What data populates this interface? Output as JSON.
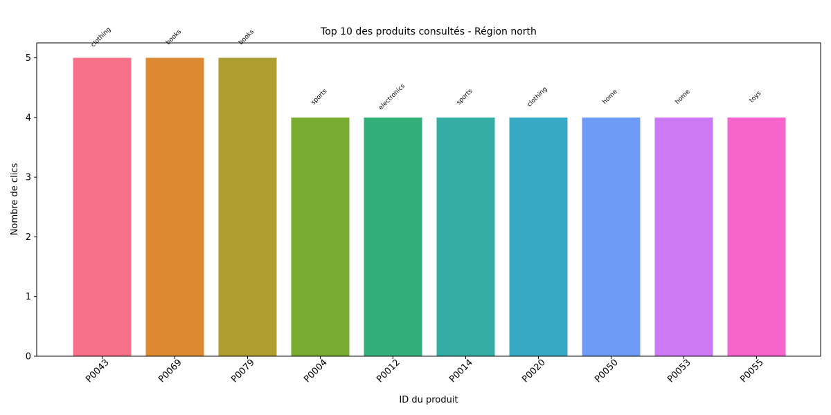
{
  "chart_data": {
    "type": "bar",
    "title": "Top 10 des produits consultés - Région north",
    "xlabel": "ID du produit",
    "ylabel": "Nombre de clics",
    "ylim": [
      0,
      5.25
    ],
    "yticks": [
      0,
      1,
      2,
      3,
      4,
      5
    ],
    "grid": false,
    "categories": [
      "P0043",
      "P0069",
      "P0079",
      "P0004",
      "P0012",
      "P0014",
      "P0020",
      "P0050",
      "P0053",
      "P0055"
    ],
    "values": [
      5,
      5,
      5,
      4,
      4,
      4,
      4,
      4,
      4,
      4
    ],
    "bar_labels": [
      "clothing",
      "books",
      "books",
      "sports",
      "electronics",
      "sports",
      "clothing",
      "home",
      "home",
      "toys"
    ],
    "colors": [
      "#f77189",
      "#dc8932",
      "#ae9d31",
      "#77ab31",
      "#33b07a",
      "#36ada4",
      "#38a9c5",
      "#6e9bf4",
      "#cc7af4",
      "#f565cc"
    ]
  }
}
